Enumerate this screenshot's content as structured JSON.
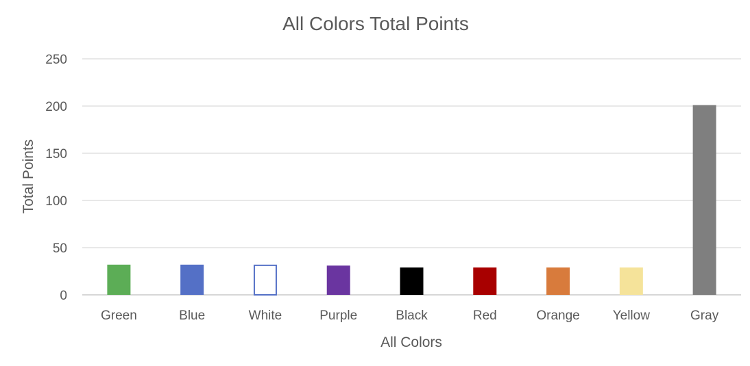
{
  "chart_data": {
    "type": "bar",
    "title": "All Colors Total Points",
    "xlabel": "All Colors",
    "ylabel": "Total Points",
    "categories": [
      "Green",
      "Blue",
      "White",
      "Purple",
      "Black",
      "Red",
      "Orange",
      "Yellow",
      "Gray"
    ],
    "values": [
      32,
      32,
      32,
      31,
      29,
      29,
      29,
      29,
      201
    ],
    "bar_colors": [
      "#5cad56",
      "#5470c6",
      "#ffffff",
      "#6a35a0",
      "#000000",
      "#a80000",
      "#d87b3c",
      "#f5e39a",
      "#7f7f7f"
    ],
    "bar_stroke": [
      "none",
      "none",
      "#5470c6",
      "none",
      "none",
      "none",
      "none",
      "none",
      "none"
    ],
    "ylim": [
      0,
      250
    ],
    "yticks": [
      0,
      50,
      100,
      150,
      200,
      250
    ],
    "grid": true,
    "legend": "none",
    "colors": {
      "gridline": "#d9d9d9",
      "axis_line": "#bfbfbf",
      "text": "#595959"
    }
  }
}
